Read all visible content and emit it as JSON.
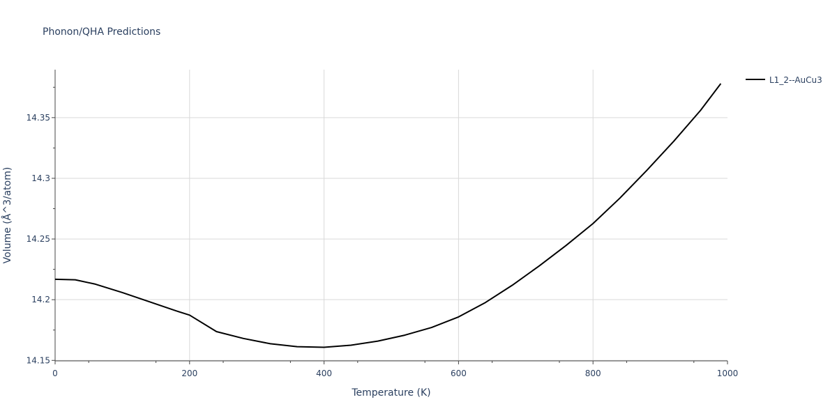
{
  "chart_data": {
    "type": "line",
    "title": "Phonon/QHA Predictions",
    "xlabel": "Temperature (K)",
    "ylabel": "Volume (Å^3/atom)",
    "xlim": [
      0,
      1000
    ],
    "ylim": [
      14.1496,
      14.3895
    ],
    "xticks": [
      0,
      200,
      400,
      600,
      800,
      1000
    ],
    "xtick_labels": [
      "0",
      "200",
      "400",
      "600",
      "800",
      "1000"
    ],
    "yticks": [
      14.15,
      14.2,
      14.25,
      14.3,
      14.35
    ],
    "ytick_labels": [
      "14.15",
      "14.2",
      "14.25",
      "14.3",
      "14.35"
    ],
    "grid": true,
    "legend_position": "top-right",
    "series": [
      {
        "name": "L1_2--AuCu3",
        "color": "#000000",
        "x": [
          0,
          30,
          60,
          100,
          140,
          180,
          200,
          240,
          280,
          320,
          360,
          400,
          440,
          480,
          520,
          560,
          600,
          640,
          680,
          720,
          760,
          800,
          840,
          880,
          920,
          960,
          990
        ],
        "y": [
          14.2168,
          14.2164,
          14.2128,
          14.2059,
          14.1983,
          14.1908,
          14.1873,
          14.1737,
          14.1681,
          14.1637,
          14.1613,
          14.1608,
          14.1625,
          14.1659,
          14.1708,
          14.1771,
          14.1858,
          14.1977,
          14.2119,
          14.2278,
          14.2447,
          14.2627,
          14.2837,
          14.3065,
          14.3305,
          14.356,
          14.378
        ]
      }
    ]
  }
}
